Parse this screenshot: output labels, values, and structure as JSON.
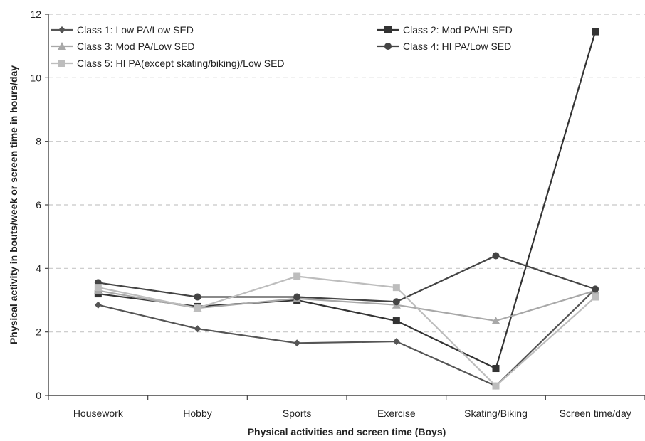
{
  "chart_data": {
    "type": "line",
    "categories": [
      "Housework",
      "Hobby",
      "Sports",
      "Exercise",
      "Skating/Biking",
      "Screen time/day"
    ],
    "xlabel": "Physical activities and screen time (Boys)",
    "ylabel": "Physical activity in bouts/week or screen time in hours/day",
    "ylim": [
      0,
      12
    ],
    "yticks": [
      0,
      2,
      4,
      6,
      8,
      10,
      12
    ],
    "grid": "horizontal dashed",
    "legend_position": "top",
    "series": [
      {
        "name": "Class 1: Low PA/Low SED",
        "marker": "diamond",
        "color": "#555555",
        "values": [
          2.85,
          2.1,
          1.65,
          1.7,
          0.3,
          3.35
        ]
      },
      {
        "name": "Class 2: Mod PA/HI SED",
        "marker": "square",
        "color": "#333333",
        "values": [
          3.2,
          2.8,
          3.0,
          2.35,
          0.85,
          11.45
        ]
      },
      {
        "name": "Class 3: Mod PA/Low SED",
        "marker": "triangle",
        "color": "#a8a8a8",
        "values": [
          3.3,
          2.75,
          3.05,
          2.85,
          2.35,
          3.3
        ]
      },
      {
        "name": "Class 4: HI PA/Low SED",
        "marker": "circle",
        "color": "#444444",
        "values": [
          3.55,
          3.1,
          3.1,
          2.95,
          4.4,
          3.35
        ]
      },
      {
        "name": "Class 5: HI PA(except skating/biking)/Low SED",
        "marker": "square",
        "color": "#bdbdbd",
        "values": [
          3.4,
          2.75,
          3.75,
          3.4,
          0.3,
          3.1
        ]
      }
    ]
  }
}
